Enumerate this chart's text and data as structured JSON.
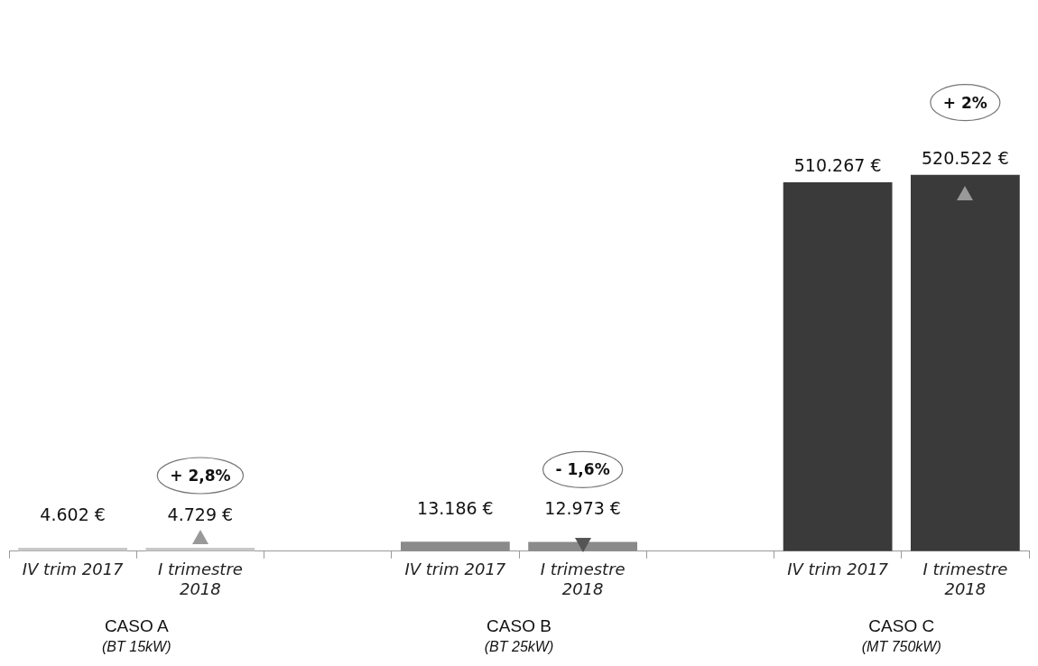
{
  "chart_data": {
    "type": "bar",
    "categories": [
      "IV trim 2017",
      "I trimestre 2018",
      null,
      "IV trim 2017",
      "I trimestre 2018",
      null,
      "IV trim 2017",
      "I trimestre 2018"
    ],
    "values": [
      4602,
      4729,
      null,
      13186,
      12973,
      null,
      510267,
      520522
    ],
    "colors": [
      "#c8c8c8",
      "#c8c8c8",
      "#ffffff",
      "#8a8a8a",
      "#8a8a8a",
      "#ffffff",
      "#3a3a3a",
      "#3a3a3a"
    ],
    "value_labels": [
      "4.602 €",
      "4.729 €",
      null,
      "13.186 €",
      "12.973 €",
      null,
      "510.267 €",
      "520.522 €"
    ],
    "annotations": [
      "+ 2,8%",
      "- 1,6%",
      "+ 2%",
      "CASO A",
      "(BT 15kW)",
      "CASO B",
      "(BT 25kW)",
      "CASO C",
      "(MT 750kW)"
    ],
    "grid": false,
    "legend": false
  }
}
